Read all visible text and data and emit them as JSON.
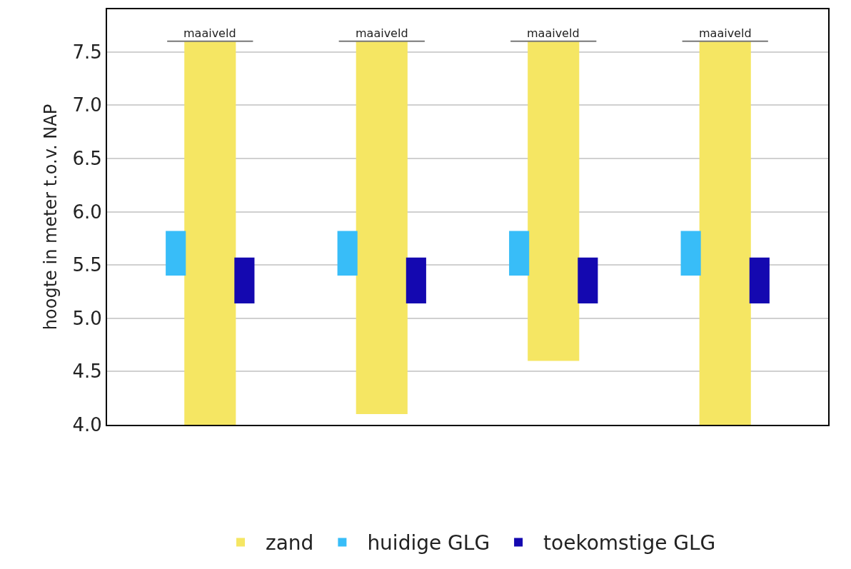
{
  "chart_data": {
    "type": "bar",
    "ylabel": "hoogte in meter t.o.v. NAP",
    "categories": [
      null,
      null,
      null,
      null
    ],
    "series": [
      {
        "name": "zand",
        "color": "#f5e663",
        "base": [
          4.0,
          4.1,
          4.6,
          4.0
        ],
        "values": [
          3.6,
          3.5,
          3.0,
          3.6
        ]
      },
      {
        "name": "huidige GLG",
        "color": "#38bdf8",
        "base": [
          5.4,
          5.4,
          5.4,
          5.4
        ],
        "values": [
          0.42,
          0.42,
          0.42,
          0.42
        ]
      },
      {
        "name": "toekomstige GLG",
        "color": "#1408b0",
        "base": [
          5.14,
          5.14,
          5.14,
          5.14
        ],
        "values": [
          0.43,
          0.43,
          0.43,
          0.43
        ]
      }
    ],
    "ref_lines": [
      {
        "axis": "y",
        "value": 7.6,
        "label": "maaiveld",
        "color": "#777777"
      }
    ],
    "ylim": [
      4.0,
      7.9
    ],
    "yticks": [
      {
        "value": 4.0,
        "label": "4.0"
      },
      {
        "value": 4.5,
        "label": "4.5"
      },
      {
        "value": 5.0,
        "label": "5.0"
      },
      {
        "value": 5.5,
        "label": "5.5"
      },
      {
        "value": 6.0,
        "label": "6.0"
      },
      {
        "value": 6.5,
        "label": "6.5"
      },
      {
        "value": 7.0,
        "label": "7.0"
      },
      {
        "value": 7.5,
        "label": "7.5"
      }
    ],
    "grid": "y",
    "legend": "bottom"
  }
}
